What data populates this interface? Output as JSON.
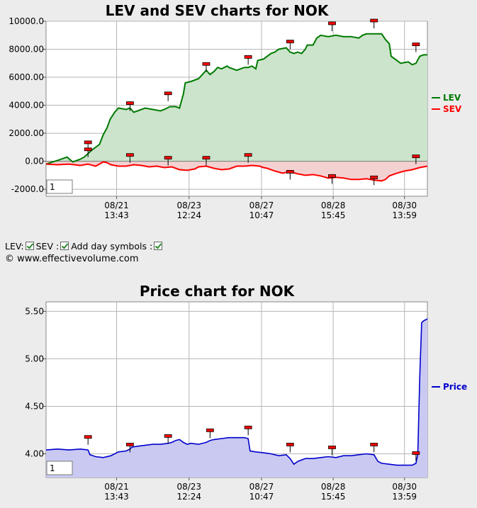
{
  "lev_chart": {
    "title": "LEV and SEV charts for NOK",
    "input_value": "1",
    "legend": [
      {
        "label": "LEV",
        "color": "#007a00"
      },
      {
        "label": "SEV",
        "color": "#ff0000"
      }
    ]
  },
  "controls": {
    "lev_label": "LEV:",
    "sev_label": "SEV :",
    "day_symbols_label": "Add day symbols :"
  },
  "copyright": "© www.effectivevolume.com",
  "price_chart": {
    "title": "Price chart for NOK",
    "input_value": "1",
    "legend": [
      {
        "label": "Price",
        "color": "#0000cc"
      }
    ]
  },
  "chart_data": [
    {
      "type": "line",
      "title": "LEV and SEV charts for NOK",
      "ylim": [
        -2500,
        10000
      ],
      "y_ticks": [
        "10000.0",
        "8000.00",
        "6000.00",
        "4000.00",
        "2000.00",
        "0.00",
        "-2000.0"
      ],
      "x_tick_labels": [
        [
          "08/21",
          "13:43"
        ],
        [
          "08/23",
          "12:24"
        ],
        [
          "08/27",
          "10:47"
        ],
        [
          "08/28",
          "15:45"
        ],
        [
          "08/30",
          "13:59"
        ]
      ],
      "x_range": [
        0,
        100
      ],
      "x_tick_positions": [
        18.5,
        37.5,
        56.5,
        75.3,
        94
      ],
      "grid": true,
      "legend_position": "right",
      "series": [
        {
          "name": "LEV",
          "color": "#007a00",
          "fill": "#cbe4cb",
          "points": [
            [
              0,
              -200
            ],
            [
              3.5,
              100
            ],
            [
              5.5,
              300
            ],
            [
              7,
              -50
            ],
            [
              9,
              150
            ],
            [
              10,
              300
            ],
            [
              12,
              800
            ],
            [
              14,
              1200
            ],
            [
              15,
              1900
            ],
            [
              16,
              2400
            ],
            [
              16.8,
              3000
            ],
            [
              18,
              3500
            ],
            [
              19,
              3800
            ],
            [
              21,
              3700
            ],
            [
              22,
              3800
            ],
            [
              23,
              3500
            ],
            [
              24,
              3600
            ],
            [
              26,
              3800
            ],
            [
              28,
              3700
            ],
            [
              30,
              3600
            ],
            [
              31,
              3700
            ],
            [
              32.5,
              3900
            ],
            [
              34,
              3900
            ],
            [
              35,
              3800
            ],
            [
              35.5,
              4300
            ],
            [
              36,
              4800
            ],
            [
              36.5,
              5600
            ],
            [
              38,
              5700
            ],
            [
              40,
              5900
            ],
            [
              41,
              6200
            ],
            [
              42,
              6500
            ],
            [
              43,
              6200
            ],
            [
              44,
              6400
            ],
            [
              45,
              6700
            ],
            [
              46,
              6600
            ],
            [
              47.5,
              6800
            ],
            [
              48,
              6700
            ],
            [
              50,
              6500
            ],
            [
              52,
              6700
            ],
            [
              53,
              6700
            ],
            [
              54,
              6800
            ],
            [
              55,
              6600
            ],
            [
              55.5,
              7200
            ],
            [
              57,
              7300
            ],
            [
              58,
              7500
            ],
            [
              59,
              7700
            ],
            [
              60,
              7800
            ],
            [
              61,
              8000
            ],
            [
              63,
              8100
            ],
            [
              64,
              7800
            ],
            [
              65,
              7700
            ],
            [
              66,
              7800
            ],
            [
              67,
              7700
            ],
            [
              68,
              8000
            ],
            [
              68.5,
              8300
            ],
            [
              70,
              8300
            ],
            [
              71,
              8800
            ],
            [
              72,
              9000
            ],
            [
              74,
              8900
            ],
            [
              76,
              9000
            ],
            [
              78,
              8900
            ],
            [
              80,
              8900
            ],
            [
              82,
              8800
            ],
            [
              83,
              9000
            ],
            [
              84,
              9100
            ],
            [
              86,
              9100
            ],
            [
              88,
              9100
            ],
            [
              89,
              8700
            ],
            [
              90,
              8400
            ],
            [
              90.5,
              7500
            ],
            [
              92,
              7200
            ],
            [
              93,
              7000
            ],
            [
              95,
              7100
            ],
            [
              96,
              6900
            ],
            [
              97,
              7000
            ],
            [
              98,
              7500
            ],
            [
              99,
              7600
            ],
            [
              100,
              7600
            ]
          ]
        },
        {
          "name": "SEV",
          "color": "#ff0000",
          "fill": "#f4d1d1",
          "points": [
            [
              0,
              -200
            ],
            [
              3,
              -250
            ],
            [
              6,
              -200
            ],
            [
              9,
              -300
            ],
            [
              11,
              -200
            ],
            [
              13,
              -350
            ],
            [
              15,
              -50
            ],
            [
              16,
              -100
            ],
            [
              17,
              -250
            ],
            [
              19,
              -350
            ],
            [
              21,
              -350
            ],
            [
              23,
              -250
            ],
            [
              25,
              -300
            ],
            [
              27,
              -400
            ],
            [
              29,
              -350
            ],
            [
              31,
              -450
            ],
            [
              33,
              -400
            ],
            [
              35,
              -600
            ],
            [
              37,
              -650
            ],
            [
              39,
              -550
            ],
            [
              40,
              -400
            ],
            [
              42,
              -350
            ],
            [
              44,
              -500
            ],
            [
              46,
              -600
            ],
            [
              48,
              -550
            ],
            [
              50,
              -350
            ],
            [
              52,
              -350
            ],
            [
              54,
              -300
            ],
            [
              56,
              -350
            ],
            [
              57,
              -450
            ],
            [
              58,
              -500
            ],
            [
              60,
              -700
            ],
            [
              62,
              -850
            ],
            [
              64,
              -750
            ],
            [
              66,
              -900
            ],
            [
              68,
              -1000
            ],
            [
              70,
              -950
            ],
            [
              72,
              -1050
            ],
            [
              74,
              -1200
            ],
            [
              76,
              -1150
            ],
            [
              78,
              -1200
            ],
            [
              80,
              -1300
            ],
            [
              82,
              -1300
            ],
            [
              84,
              -1250
            ],
            [
              86,
              -1350
            ],
            [
              88,
              -1400
            ],
            [
              89,
              -1300
            ],
            [
              90,
              -1050
            ],
            [
              92,
              -850
            ],
            [
              94,
              -700
            ],
            [
              96,
              -600
            ],
            [
              98,
              -450
            ],
            [
              100,
              -350
            ]
          ]
        }
      ],
      "day_symbol_positions": [
        [
          11,
          1300
        ],
        [
          11,
          800
        ],
        [
          22,
          4100
        ],
        [
          22,
          400
        ],
        [
          32,
          4800
        ],
        [
          32,
          200
        ],
        [
          42,
          6900
        ],
        [
          42,
          200
        ],
        [
          53,
          7400
        ],
        [
          53,
          400
        ],
        [
          64,
          8500
        ],
        [
          64,
          -800
        ],
        [
          75,
          9800
        ],
        [
          75,
          -1100
        ],
        [
          86,
          10000
        ],
        [
          86,
          -1200
        ],
        [
          97,
          8300
        ],
        [
          97,
          300
        ]
      ]
    },
    {
      "type": "area",
      "title": "Price chart for NOK",
      "ylim": [
        3.75,
        5.6
      ],
      "y_ticks": [
        "5.50",
        "5.00",
        "4.50",
        "4.00"
      ],
      "x_tick_labels": [
        [
          "08/21",
          "13:43"
        ],
        [
          "08/23",
          "12:24"
        ],
        [
          "08/27",
          "10:47"
        ],
        [
          "08/28",
          "15:45"
        ],
        [
          "08/30",
          "13:59"
        ]
      ],
      "x_range": [
        0,
        100
      ],
      "x_tick_positions": [
        18.5,
        37.5,
        56.5,
        75.3,
        94
      ],
      "grid": true,
      "legend_position": "right",
      "series": [
        {
          "name": "Price",
          "color": "#0000cc",
          "fill": "#c9c9f2",
          "points": [
            [
              0,
              4.04
            ],
            [
              3,
              4.05
            ],
            [
              6,
              4.04
            ],
            [
              9,
              4.05
            ],
            [
              11,
              4.04
            ],
            [
              11.5,
              3.99
            ],
            [
              13,
              3.97
            ],
            [
              15,
              3.96
            ],
            [
              17,
              3.98
            ],
            [
              19,
              4.02
            ],
            [
              21,
              4.03
            ],
            [
              22,
              4.05
            ],
            [
              22.5,
              4.07
            ],
            [
              24,
              4.08
            ],
            [
              26,
              4.09
            ],
            [
              28,
              4.1
            ],
            [
              30,
              4.1
            ],
            [
              32,
              4.11
            ],
            [
              33,
              4.12
            ],
            [
              34,
              4.14
            ],
            [
              35,
              4.15
            ],
            [
              36,
              4.12
            ],
            [
              37,
              4.1
            ],
            [
              38,
              4.11
            ],
            [
              40,
              4.1
            ],
            [
              42,
              4.12
            ],
            [
              43,
              4.14
            ],
            [
              44,
              4.15
            ],
            [
              46,
              4.16
            ],
            [
              48,
              4.17
            ],
            [
              50,
              4.17
            ],
            [
              52,
              4.17
            ],
            [
              53,
              4.16
            ],
            [
              53.5,
              4.03
            ],
            [
              55,
              4.02
            ],
            [
              57,
              4.01
            ],
            [
              59,
              4.0
            ],
            [
              61,
              3.98
            ],
            [
              63,
              3.99
            ],
            [
              64,
              3.95
            ],
            [
              65,
              3.89
            ],
            [
              66,
              3.92
            ],
            [
              68,
              3.95
            ],
            [
              70,
              3.95
            ],
            [
              72,
              3.96
            ],
            [
              74,
              3.97
            ],
            [
              76,
              3.96
            ],
            [
              78,
              3.98
            ],
            [
              80,
              3.98
            ],
            [
              82,
              3.99
            ],
            [
              84,
              4.0
            ],
            [
              86,
              3.99
            ],
            [
              87,
              3.92
            ],
            [
              88,
              3.9
            ],
            [
              90,
              3.89
            ],
            [
              92,
              3.88
            ],
            [
              94,
              3.88
            ],
            [
              96,
              3.88
            ],
            [
              97,
              3.9
            ],
            [
              97.5,
              4.0
            ],
            [
              98,
              4.8
            ],
            [
              98.5,
              5.38
            ],
            [
              99,
              5.4
            ],
            [
              100,
              5.42
            ]
          ]
        }
      ],
      "day_symbol_positions": [
        [
          11,
          4.17
        ],
        [
          22,
          4.09
        ],
        [
          32,
          4.18
        ],
        [
          43,
          4.24
        ],
        [
          53,
          4.27
        ],
        [
          64,
          4.09
        ],
        [
          75,
          4.06
        ],
        [
          86,
          4.09
        ],
        [
          97,
          4.0
        ]
      ]
    }
  ]
}
